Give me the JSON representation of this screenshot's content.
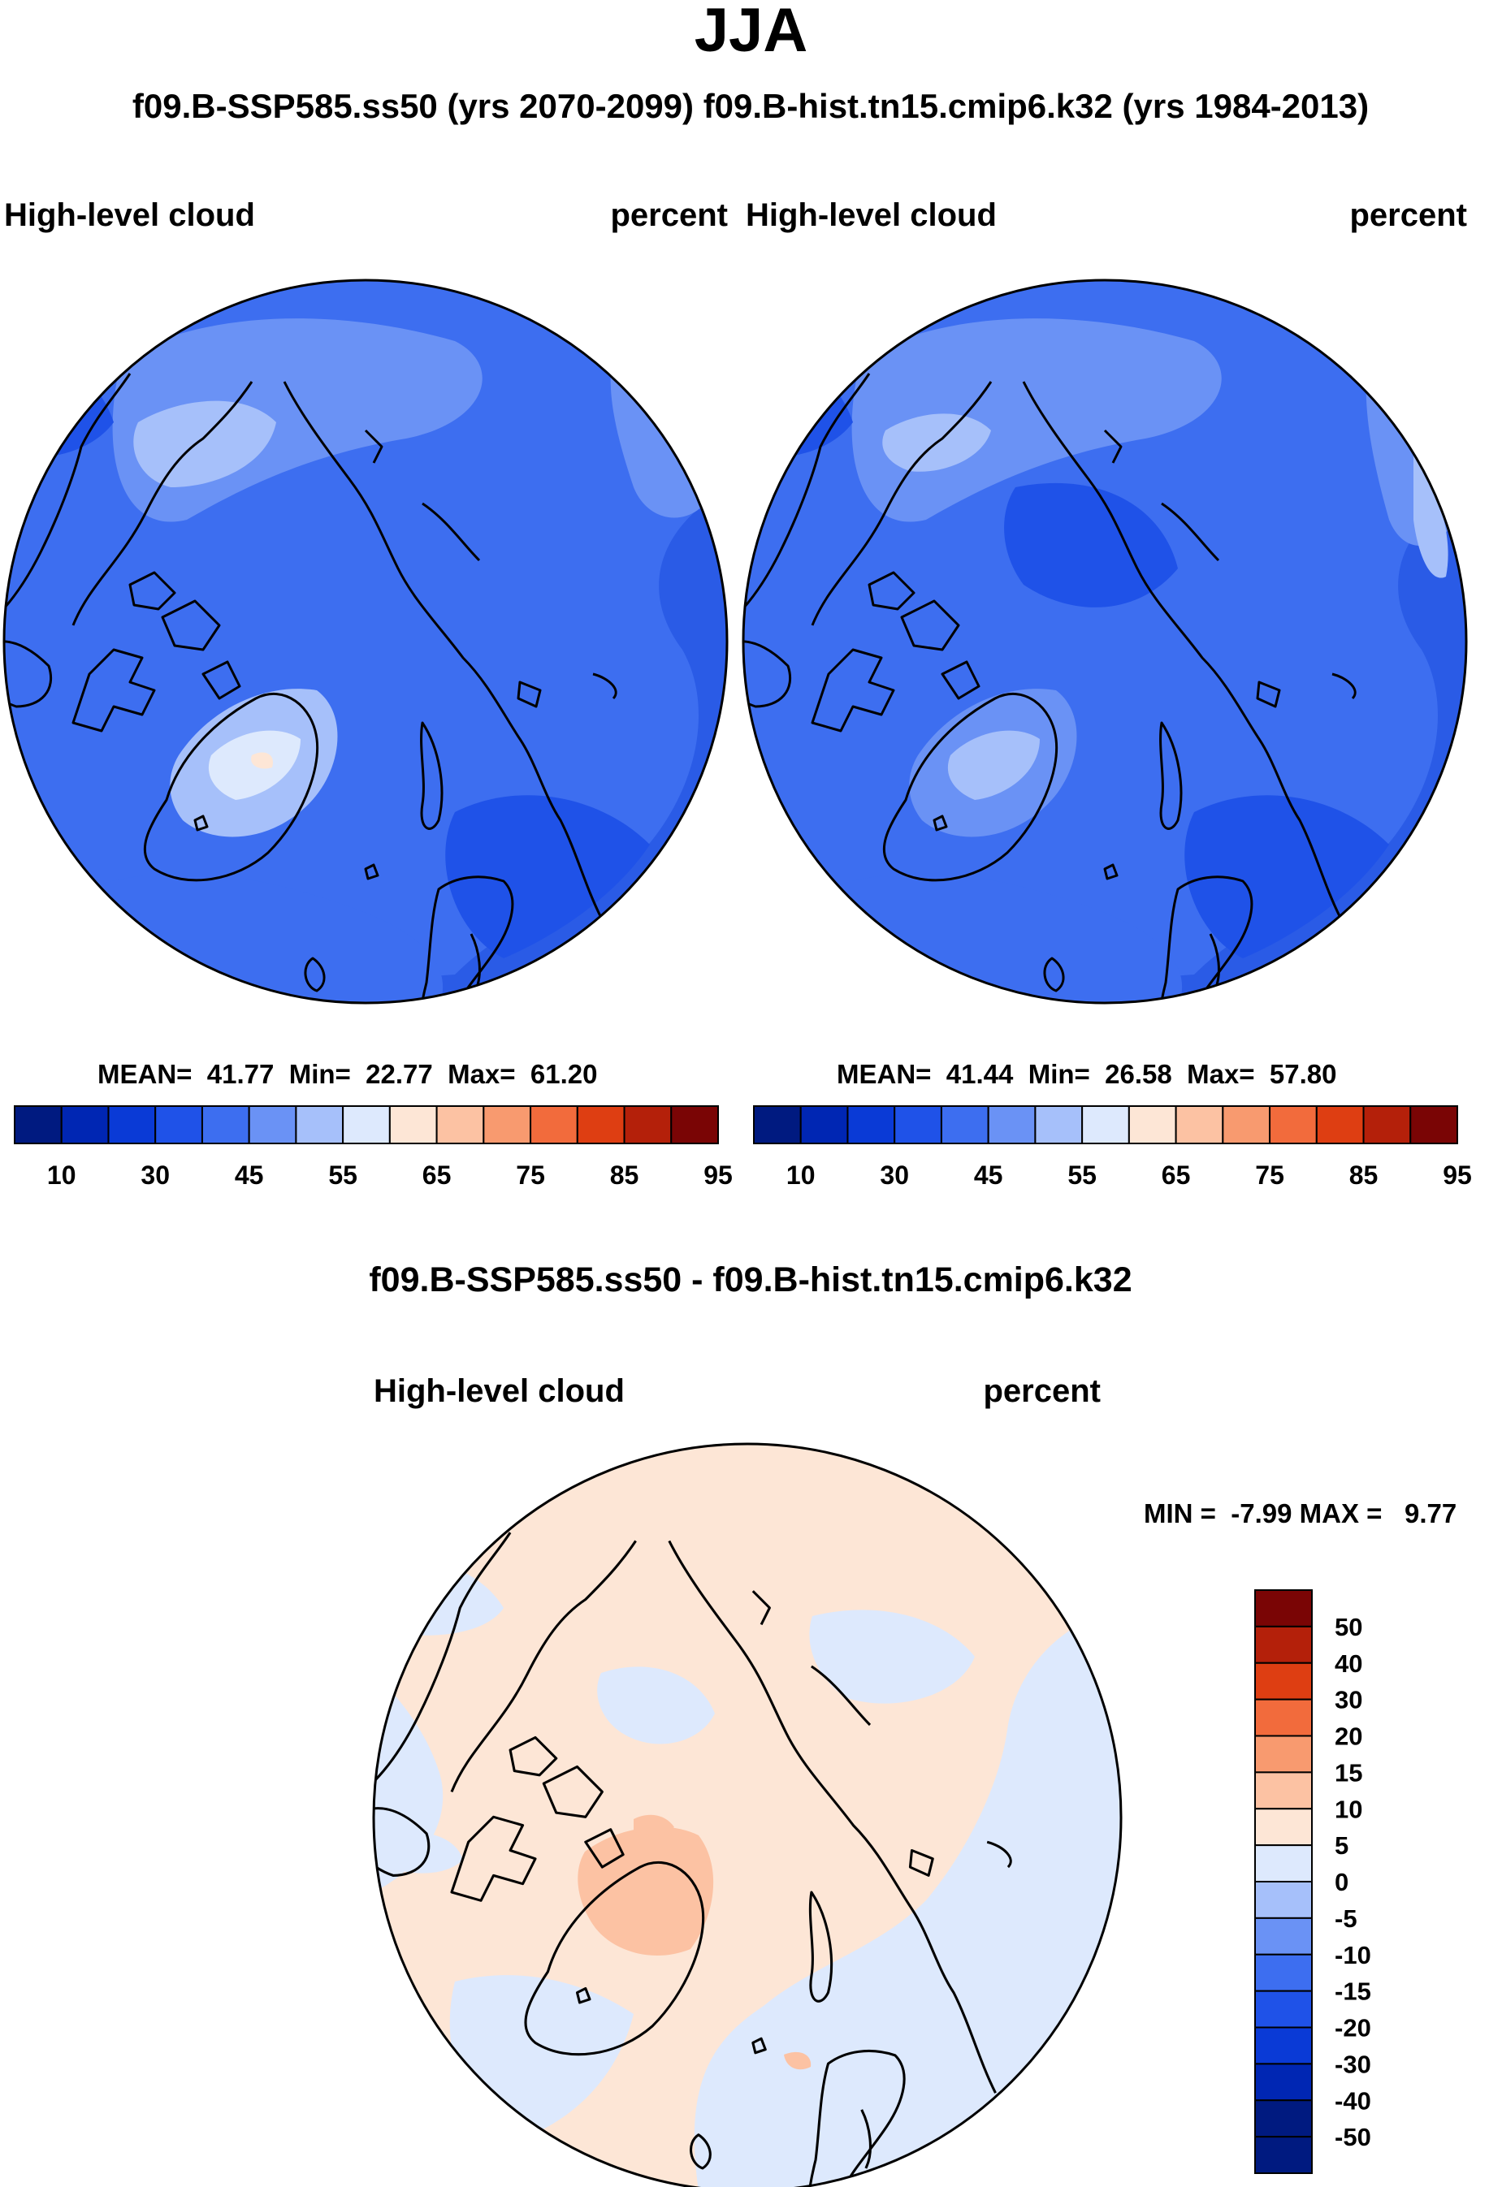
{
  "season": "JJA",
  "header_left": "f09.B-SSP585.ss50 (yrs 2070-2099)",
  "header_right": "f09.B-hist.tn15.cmip6.k32 (yrs 1984-2013)",
  "panels": [
    {
      "variable": "High-level cloud",
      "units": "percent",
      "stats": {
        "mean_label": "MEAN=",
        "mean": "41.77",
        "min_label": "Min=",
        "min": "22.77",
        "max_label": "Max=",
        "max": "61.20"
      }
    },
    {
      "variable": "High-level cloud",
      "units": "percent",
      "stats": {
        "mean_label": "MEAN=",
        "mean": "41.44",
        "min_label": "Min=",
        "min": "26.58",
        "max_label": "Max=",
        "max": "57.80"
      }
    }
  ],
  "diff_panel": {
    "title": "f09.B-SSP585.ss50 - f09.B-hist.tn15.cmip6.k32",
    "variable": "High-level cloud",
    "units": "percent",
    "minmax": {
      "min_label": "MIN =",
      "min": "-7.99",
      "max_label": "MAX =",
      "max": "9.77"
    }
  },
  "colorbars": {
    "main": {
      "colors": [
        "#001a80",
        "#0026b3",
        "#0a3ad6",
        "#1f52e8",
        "#3d6ef0",
        "#6a92f5",
        "#a6c0fa",
        "#dde9fd",
        "#fde6d6",
        "#fcc2a3",
        "#f89a6f",
        "#f26b3c",
        "#de3e12",
        "#b4200a",
        "#7a0505"
      ],
      "labels": [
        "10",
        "30",
        "45",
        "55",
        "65",
        "75",
        "85",
        "95"
      ]
    },
    "diff": {
      "colors": [
        "#7a0505",
        "#b4200a",
        "#de3e12",
        "#f26b3c",
        "#f89a6f",
        "#fcc2a3",
        "#fde6d6",
        "#dde9fd",
        "#a6c0fa",
        "#6a92f5",
        "#3d6ef0",
        "#1f52e8",
        "#0a3ad6",
        "#0026b3",
        "#001a80"
      ],
      "labels": [
        "50",
        "40",
        "30",
        "20",
        "15",
        "10",
        "5",
        "0",
        "-5",
        "-10",
        "-15",
        "-20",
        "-30",
        "-40",
        "-50"
      ]
    }
  },
  "chart_data": [
    {
      "type": "heatmap",
      "projection": "polar stereographic (north pole)",
      "field": "High-level cloud",
      "units": "percent",
      "case": "f09.B-SSP585.ss50 (yrs 2070-2099)",
      "mean": 41.77,
      "min": 22.77,
      "max": 61.2,
      "contour_levels": [
        5,
        10,
        15,
        20,
        25,
        30,
        35,
        40,
        45,
        50,
        55,
        60,
        65,
        70,
        75,
        80,
        85,
        90,
        95,
        100
      ]
    },
    {
      "type": "heatmap",
      "projection": "polar stereographic (north pole)",
      "field": "High-level cloud",
      "units": "percent",
      "case": "f09.B-hist.tn15.cmip6.k32 (yrs 1984-2013)",
      "mean": 41.44,
      "min": 26.58,
      "max": 57.8,
      "contour_levels": [
        5,
        10,
        15,
        20,
        25,
        30,
        35,
        40,
        45,
        50,
        55,
        60,
        65,
        70,
        75,
        80,
        85,
        90,
        95,
        100
      ]
    },
    {
      "type": "heatmap",
      "projection": "polar stereographic (north pole)",
      "field": "High-level cloud difference",
      "units": "percent",
      "case": "f09.B-SSP585.ss50 - f09.B-hist.tn15.cmip6.k32",
      "min": -7.99,
      "max": 9.77,
      "contour_levels": [
        -50,
        -40,
        -30,
        -20,
        -15,
        -10,
        -5,
        0,
        5,
        10,
        15,
        20,
        30,
        40,
        50
      ]
    }
  ]
}
